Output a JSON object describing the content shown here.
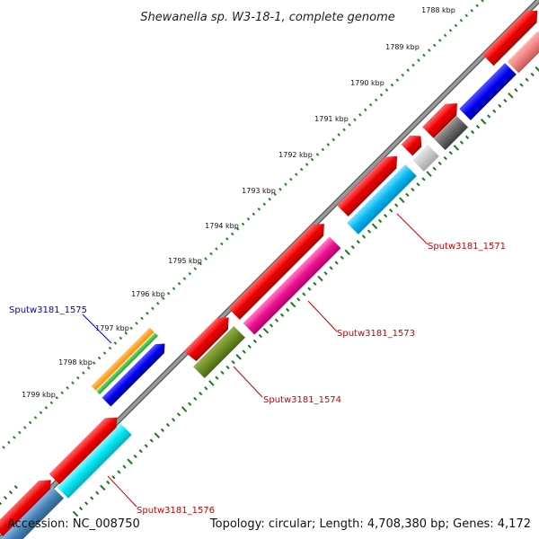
{
  "title": "Shewanella sp. W3-18-1, complete genome",
  "footer": {
    "accession": "Accession: NC_008750",
    "topology": "Topology: circular; Length: 4,708,380 bp; Genes: 4,172"
  },
  "ticks": [
    "1788 kbp",
    "1789 kbp",
    "1790 kbp",
    "1791 kbp",
    "1792 kbp",
    "1793 kbp",
    "1794 kbp",
    "1795 kbp",
    "1796 kbp",
    "1797 kbp",
    "1798 kbp",
    "1799 kbp"
  ],
  "gene_labels": [
    {
      "text": "Sputw3181_1571",
      "color": "#cc0000"
    },
    {
      "text": "Sputw3181_1573",
      "color": "#cc0000"
    },
    {
      "text": "Sputw3181_1574",
      "color": "#cc0000"
    },
    {
      "text": "Sputw3181_1575",
      "color": "#0000cc"
    },
    {
      "text": "Sputw3181_1576",
      "color": "#cc0000"
    }
  ],
  "colors": {
    "backbone": "#8a8a8a",
    "cds": "#ee0000",
    "tick_dots": "#1a8a1a",
    "inner_dots": "#1a7a1a"
  }
}
